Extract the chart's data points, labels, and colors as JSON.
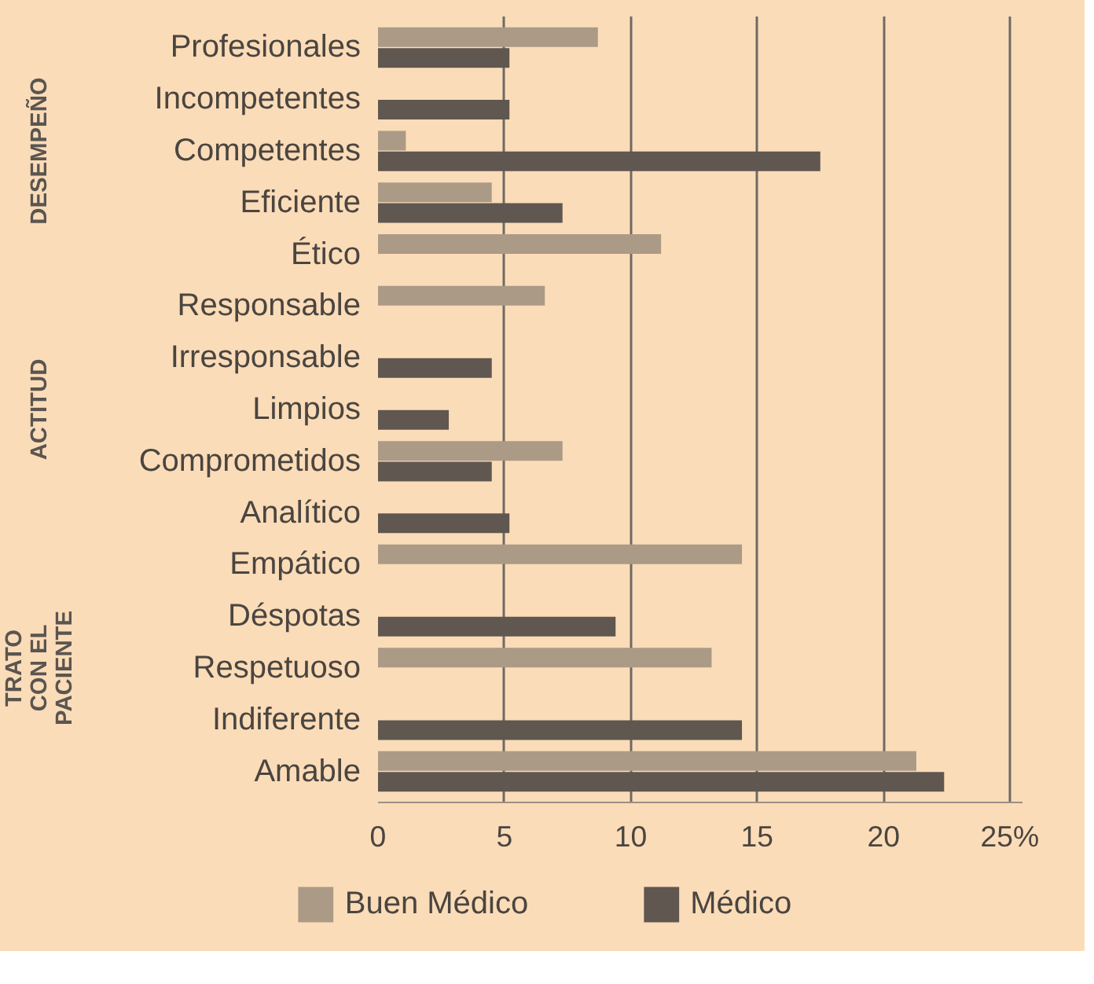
{
  "chart_data": {
    "type": "bar",
    "orientation": "horizontal",
    "categories": [
      "Profesionales",
      "Incompetentes",
      "Competentes",
      "Eficiente",
      "Ético",
      "Responsable",
      "Irresponsable",
      "Limpios",
      "Comprometidos",
      "Analítico",
      "Empático",
      "Déspotas",
      "Respetuoso",
      "Indiferente",
      "Amable"
    ],
    "series": [
      {
        "name": "Buen Médico",
        "color": "#ab9a86",
        "values": [
          8.7,
          null,
          1.1,
          4.5,
          11.2,
          6.6,
          null,
          null,
          7.3,
          null,
          14.4,
          null,
          13.2,
          null,
          21.3
        ]
      },
      {
        "name": "Médico",
        "color": "#5f5750",
        "values": [
          5.2,
          5.2,
          17.5,
          7.3,
          null,
          null,
          4.5,
          2.8,
          4.5,
          5.2,
          null,
          9.4,
          null,
          14.4,
          22.4
        ]
      }
    ],
    "xlim": [
      0,
      25.5
    ],
    "xticks": [
      0,
      5,
      10,
      15,
      20,
      {
        "value": 25,
        "label": "25%"
      }
    ],
    "grid": "x",
    "legend": "bottom",
    "annotations": [
      "DESEMPEÑO",
      "ACTITUD",
      "TRATO\nCON EL\nPACIENTE"
    ]
  }
}
